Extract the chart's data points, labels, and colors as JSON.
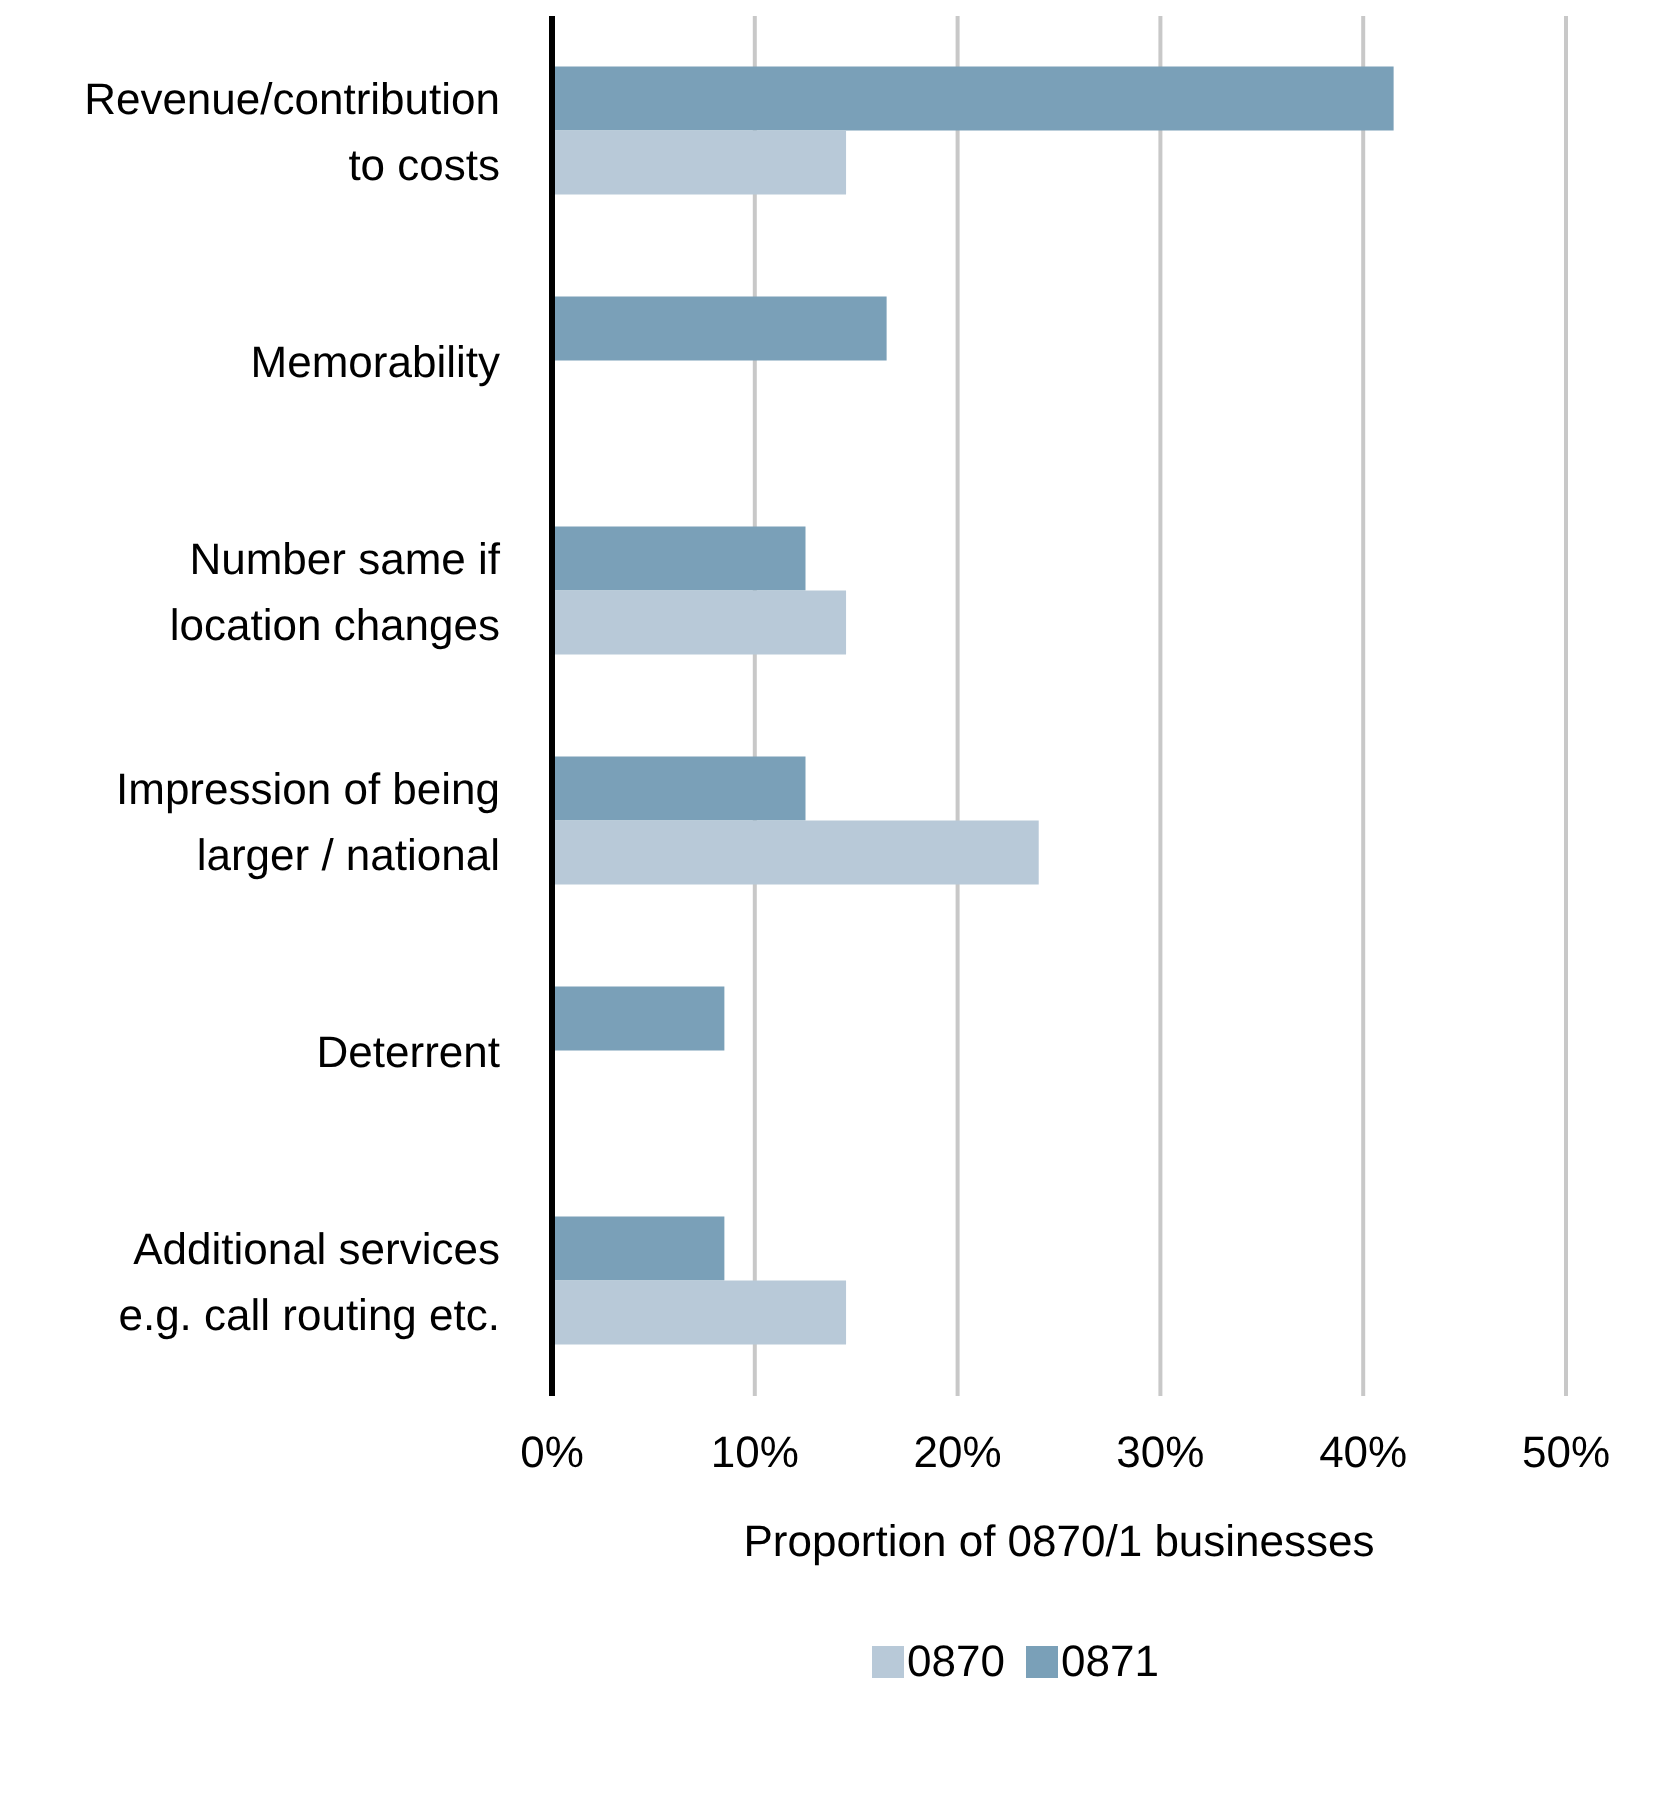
{
  "chart_data": {
    "type": "bar",
    "orientation": "horizontal",
    "xlabel": "Proportion of 0870/1 businesses",
    "categories": [
      "Revenue/contribution to costs",
      "Memorability",
      "Number same if location changes",
      "Impression of being larger / national",
      "Deterrent",
      "Additional services e.g. call routing etc."
    ],
    "series": [
      {
        "name": "0870",
        "color": "#b8c9d8",
        "values": [
          14.5,
          0,
          14.5,
          24,
          0,
          14.5
        ]
      },
      {
        "name": "0871",
        "color": "#7aa0b8",
        "values": [
          41.5,
          16.5,
          12.5,
          12.5,
          8.5,
          8.5
        ]
      }
    ],
    "xlim": [
      0,
      50
    ],
    "xticks": [
      {
        "value": 0,
        "label": "0%"
      },
      {
        "value": 10,
        "label": "10%"
      },
      {
        "value": 20,
        "label": "20%"
      },
      {
        "value": 30,
        "label": "30%"
      },
      {
        "value": 40,
        "label": "40%"
      },
      {
        "value": 50,
        "label": "50%"
      }
    ],
    "grid": "x",
    "legend": "bottom"
  }
}
